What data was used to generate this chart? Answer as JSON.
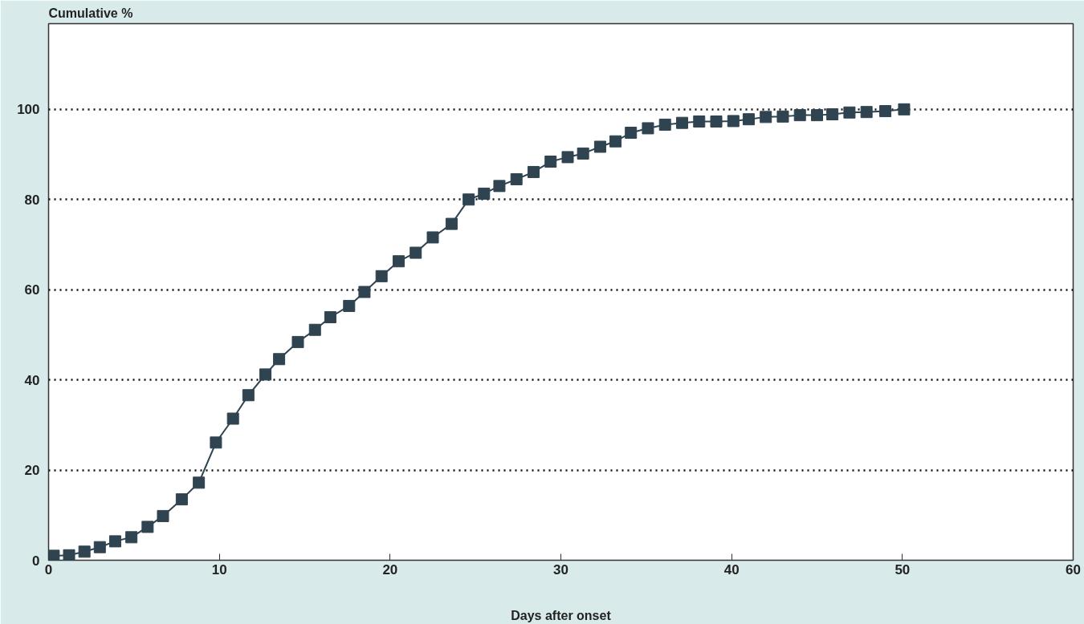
{
  "chart_data": {
    "type": "line",
    "ylabel": "Cumulative %",
    "xlabel": "Days after onset",
    "xlim": [
      0,
      60
    ],
    "ylim": [
      0,
      119
    ],
    "xticks": [
      0,
      10,
      20,
      30,
      40,
      50,
      60
    ],
    "yticks": [
      0,
      20,
      40,
      60,
      80,
      100
    ],
    "grid": "y",
    "marker": "square",
    "line_style": "solid",
    "series": [
      {
        "color": "#2f4450",
        "x": [
          0.3,
          1.2,
          2.1,
          3.0,
          3.9,
          4.85,
          5.8,
          6.7,
          7.8,
          8.8,
          9.8,
          10.8,
          11.7,
          12.7,
          13.5,
          14.6,
          15.6,
          16.5,
          17.6,
          18.5,
          19.5,
          20.5,
          21.5,
          22.5,
          23.6,
          24.6,
          25.5,
          26.4,
          27.4,
          28.4,
          29.4,
          30.4,
          31.3,
          32.3,
          33.2,
          34.1,
          35.1,
          36.1,
          37.1,
          38.1,
          39.1,
          40.1,
          41.0,
          42.0,
          43.0,
          44.0,
          45.0,
          45.9,
          46.9,
          47.9,
          49.0,
          50.1
        ],
        "values": [
          1.0,
          1.1,
          1.9,
          2.9,
          4.2,
          5.1,
          7.4,
          9.8,
          13.5,
          17.2,
          26.1,
          31.4,
          36.6,
          41.2,
          44.6,
          48.4,
          51.1,
          53.9,
          56.4,
          59.5,
          63.0,
          66.3,
          68.2,
          71.6,
          74.6,
          80.0,
          81.3,
          83.0,
          84.5,
          86.1,
          88.4,
          89.4,
          90.2,
          91.7,
          92.9,
          94.8,
          95.8,
          96.6,
          97.0,
          97.3,
          97.3,
          97.4,
          97.8,
          98.3,
          98.4,
          98.7,
          98.7,
          98.9,
          99.3,
          99.4,
          99.6,
          100.0
        ]
      }
    ]
  }
}
